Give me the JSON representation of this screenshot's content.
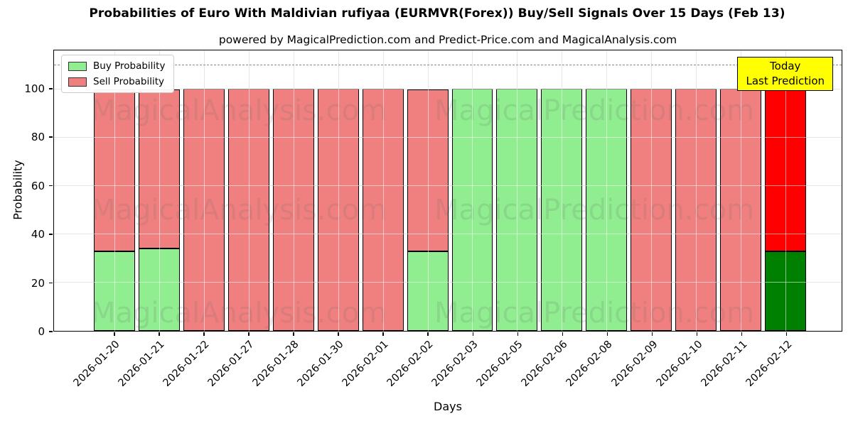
{
  "title": "Probabilities of Euro With Maldivian rufiyaa (EURMVR(Forex)) Buy/Sell Signals Over 15 Days (Feb 13)",
  "subtitle": "powered by MagicalPrediction.com and Predict-Price.com and MagicalAnalysis.com",
  "legend": {
    "items": [
      {
        "label": "Buy Probability",
        "color": "#90EE90"
      },
      {
        "label": "Sell Probability",
        "color": "#F08080"
      }
    ]
  },
  "annotation_box": {
    "line1": "Today",
    "line2": "Last Prediction",
    "bg_color": "#FFFF00"
  },
  "watermarks": [
    "MagicalAnalysis.com",
    "MagicalPrediction.com"
  ],
  "chart_data": {
    "type": "bar",
    "stacked": true,
    "title": "Probabilities of Euro With Maldivian rufiyaa (EURMVR(Forex)) Buy/Sell Signals Over 15 Days (Feb 13)",
    "xlabel": "Days",
    "ylabel": "Probability",
    "ylim": [
      0,
      116
    ],
    "yticks": [
      0,
      20,
      40,
      60,
      80,
      100
    ],
    "grid": true,
    "legend_position": "upper left",
    "dashed_line_y": 110,
    "categories": [
      "2026-01-20",
      "2026-01-21",
      "2026-01-22",
      "2026-01-27",
      "2026-01-28",
      "2026-01-30",
      "2026-02-01",
      "2026-02-02",
      "2026-02-03",
      "2026-02-05",
      "2026-02-06",
      "2026-02-08",
      "2026-02-09",
      "2026-02-10",
      "2026-02-11",
      "2026-02-12"
    ],
    "series": [
      {
        "name": "Buy Probability",
        "color": "#90EE90",
        "today_color": "#008000",
        "values": [
          33,
          34,
          0,
          0,
          0,
          0,
          0,
          33,
          100,
          100,
          100,
          100,
          0,
          0,
          0,
          33
        ]
      },
      {
        "name": "Sell Probability",
        "color": "#F08080",
        "today_color": "#FF0000",
        "values": [
          67,
          66,
          100,
          100,
          100,
          100,
          100,
          67,
          0,
          0,
          0,
          0,
          100,
          100,
          100,
          67
        ]
      }
    ],
    "today_index": 15
  }
}
